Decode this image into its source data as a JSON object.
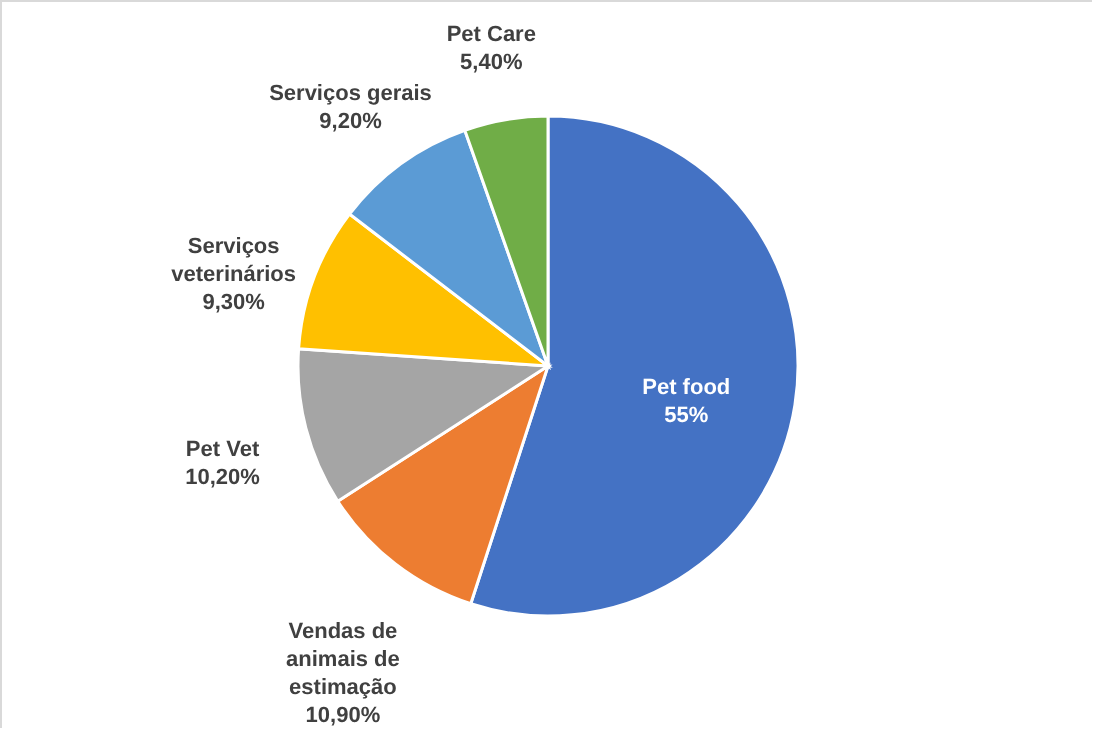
{
  "chart_data": {
    "type": "pie",
    "categories": [
      "Pet food",
      "Vendas de animais de estimação",
      "Pet Vet",
      "Serviços veterinários",
      "Serviços gerais",
      "Pet Care"
    ],
    "values": [
      55,
      10.9,
      10.2,
      9.3,
      9.2,
      5.4
    ],
    "value_labels": [
      "55%",
      "10,90%",
      "10,20%",
      "9,30%",
      "9,20%",
      "5,40%"
    ],
    "colors": [
      "#4472c4",
      "#ed7d31",
      "#a5a5a5",
      "#ffc000",
      "#5b9bd5",
      "#70ad47"
    ]
  }
}
